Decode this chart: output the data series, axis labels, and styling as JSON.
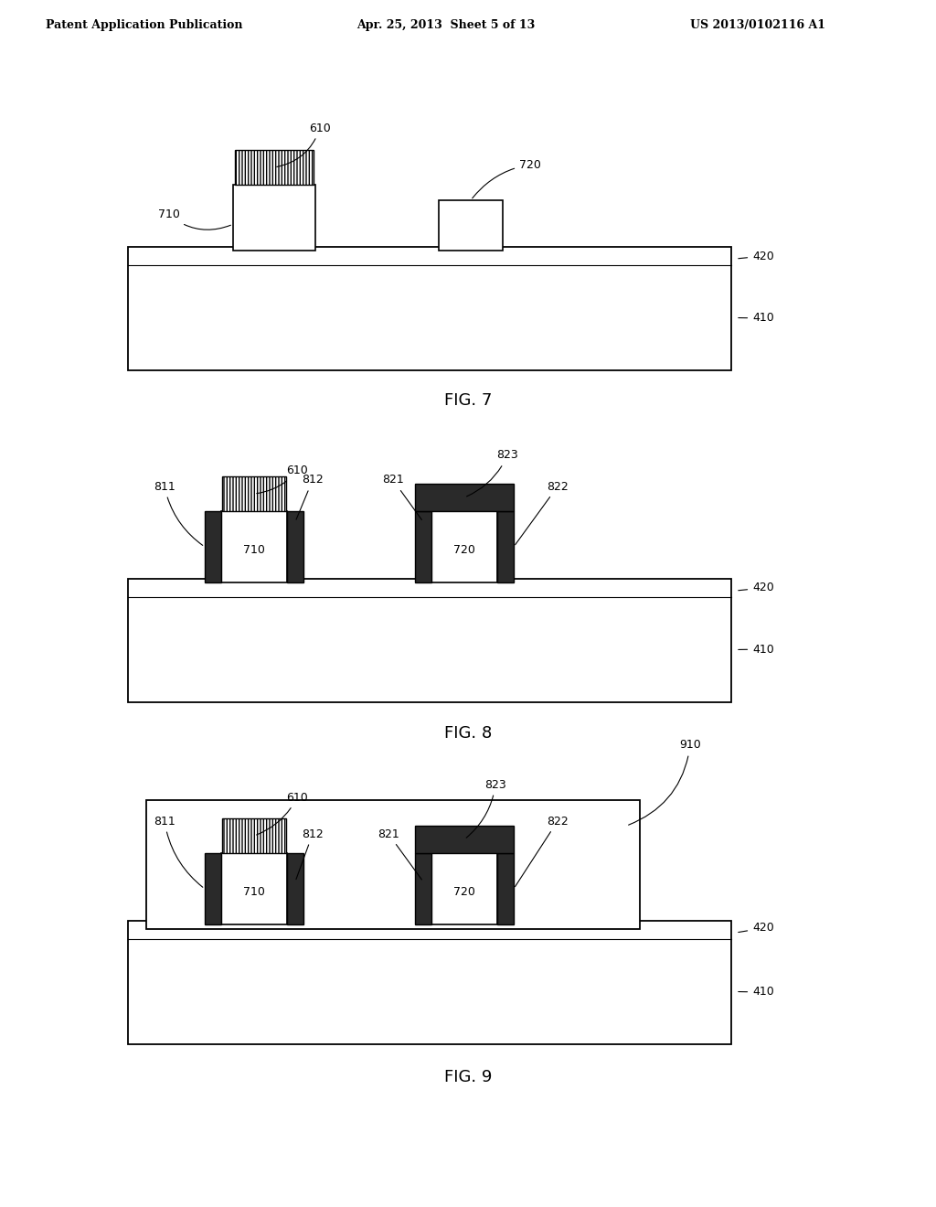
{
  "page_width": 10.24,
  "page_height": 13.2,
  "background": "#ffffff",
  "header_text": "Patent Application Publication",
  "header_date": "Apr. 25, 2013  Sheet 5 of 13",
  "header_patent": "US 2013/0102116 A1"
}
